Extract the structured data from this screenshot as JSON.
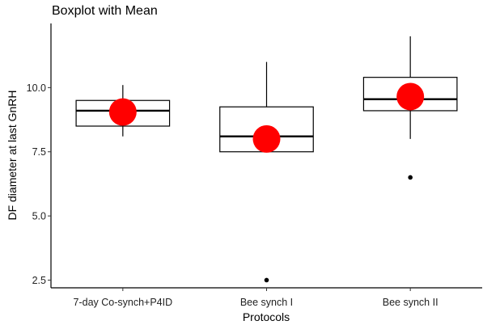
{
  "chart_data": {
    "type": "box",
    "title": "Boxplot with Mean",
    "xlabel": "Protocols",
    "ylabel": "DF diameter at last GnRH",
    "ylim": [
      2.2,
      12.5
    ],
    "yticks": [
      2.5,
      5.0,
      7.5,
      10.0
    ],
    "ytick_labels": [
      "2.5",
      "5.0",
      "7.5",
      "10.0"
    ],
    "grid": false,
    "categories": [
      "7-day Co-synch+P4ID",
      "Bee synch I",
      "Bee synch II"
    ],
    "boxes": [
      {
        "whisker_low": 8.1,
        "q1": 8.5,
        "median": 9.1,
        "q3": 9.5,
        "whisker_high": 10.1,
        "mean": 9.05,
        "outliers": []
      },
      {
        "whisker_low": 7.5,
        "q1": 7.5,
        "median": 8.1,
        "q3": 9.25,
        "whisker_high": 11.0,
        "mean": 8.0,
        "outliers": [
          2.5
        ]
      },
      {
        "whisker_low": 8.0,
        "q1": 9.1,
        "median": 9.55,
        "q3": 10.4,
        "whisker_high": 12.0,
        "mean": 9.65,
        "outliers": [
          6.5
        ]
      }
    ],
    "colors": {
      "mean": "#ff0000",
      "box_fill": "#ffffff",
      "line": "#000000"
    }
  }
}
